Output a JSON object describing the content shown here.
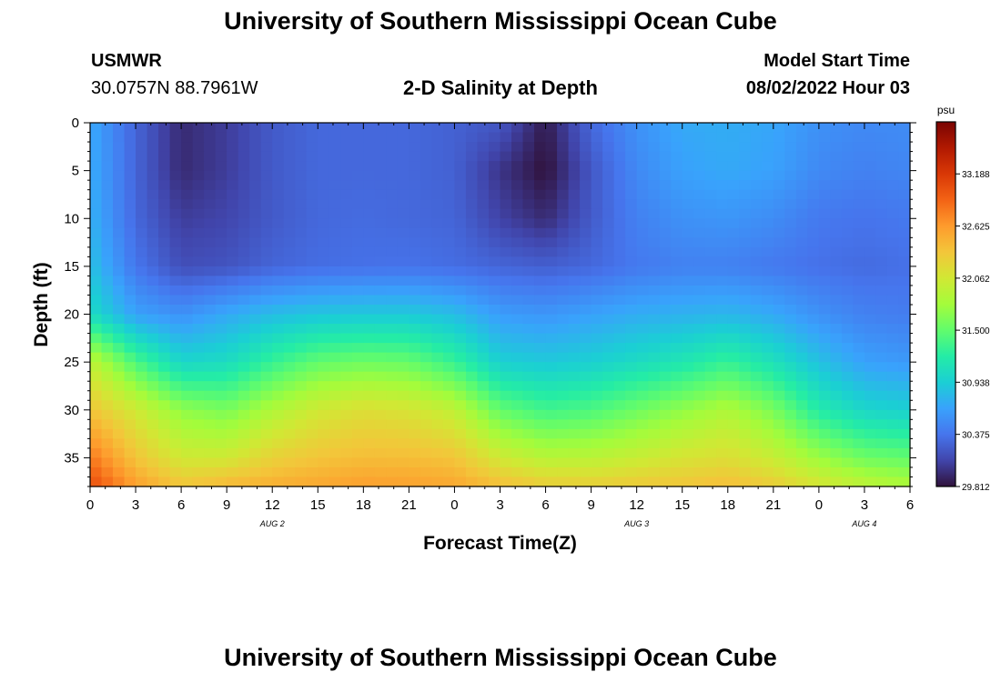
{
  "page": {
    "title": "University of Southern Mississippi Ocean Cube",
    "title_repeat": "University of Southern Mississippi Ocean Cube",
    "station": "USMWR",
    "coordinates": "30.0757N  88.7961W",
    "subtitle": "2-D Salinity at Depth",
    "model_start_label": "Model Start Time",
    "model_start_value": "08/02/2022 Hour 03"
  },
  "chart_data": {
    "type": "heatmap",
    "title": "2-D Salinity at Depth",
    "xlabel": "Forecast Time(Z)",
    "ylabel": "Depth (ft)",
    "x_tick_labels": [
      "0",
      "3",
      "6",
      "9",
      "12",
      "15",
      "18",
      "21",
      "0",
      "3",
      "6",
      "9",
      "12",
      "15",
      "18",
      "21",
      "0",
      "3",
      "6"
    ],
    "x_hours_range": [
      0,
      54
    ],
    "date_labels": [
      {
        "label": "AUG 2",
        "hour": 12
      },
      {
        "label": "AUG 3",
        "hour": 36
      },
      {
        "label": "AUG 4",
        "hour": 51
      }
    ],
    "y_ticks": [
      0,
      5,
      10,
      15,
      20,
      25,
      30,
      35
    ],
    "ylim": [
      0,
      38
    ],
    "y_inverted": true,
    "colorbar": {
      "unit": "psu",
      "min": 29.812,
      "max": 33.75,
      "tick_labels": [
        "29.812",
        "30.375",
        "30.938",
        "31.500",
        "32.062",
        "32.625",
        "33.188"
      ],
      "colors": [
        "#30123b",
        "#4145ab",
        "#4675ed",
        "#39a2fc",
        "#1bcfd4",
        "#24eca6",
        "#61fc6c",
        "#a4fc3b",
        "#d1e834",
        "#f3c63a",
        "#fe9b2d",
        "#f36315",
        "#d93806",
        "#b11901",
        "#7a0402"
      ]
    },
    "time_samples_hours": [
      0,
      3,
      6,
      9,
      12,
      15,
      18,
      21,
      24,
      27,
      30,
      33,
      36,
      39,
      42,
      45,
      48,
      51,
      54
    ],
    "depth_samples_ft": [
      0,
      5,
      10,
      15,
      20,
      25,
      30,
      35,
      38
    ],
    "values_psu": [
      [
        30.7,
        30.28,
        29.95,
        30.05,
        30.22,
        30.3,
        30.3,
        30.3,
        30.26,
        30.2,
        29.86,
        30.3,
        30.55,
        30.7,
        30.72,
        30.68,
        30.55,
        30.5,
        30.52
      ],
      [
        30.72,
        30.28,
        29.95,
        30.05,
        30.22,
        30.3,
        30.3,
        30.3,
        30.26,
        30.0,
        29.81,
        30.2,
        30.5,
        30.65,
        30.7,
        30.65,
        30.5,
        30.45,
        30.48
      ],
      [
        30.75,
        30.3,
        30.05,
        30.1,
        30.22,
        30.3,
        30.32,
        30.3,
        30.28,
        30.08,
        29.95,
        30.22,
        30.45,
        30.55,
        30.58,
        30.52,
        30.4,
        30.37,
        30.4
      ],
      [
        30.85,
        30.38,
        30.15,
        30.18,
        30.28,
        30.33,
        30.35,
        30.36,
        30.33,
        30.28,
        30.25,
        30.3,
        30.4,
        30.45,
        30.45,
        30.4,
        30.35,
        30.32,
        30.35
      ],
      [
        31.05,
        30.65,
        30.55,
        30.7,
        30.82,
        30.88,
        30.9,
        30.9,
        30.82,
        30.62,
        30.58,
        30.65,
        30.72,
        30.75,
        30.78,
        30.7,
        30.55,
        30.45,
        30.42
      ],
      [
        31.95,
        31.4,
        31.0,
        31.05,
        31.3,
        31.5,
        31.55,
        31.52,
        31.3,
        30.95,
        30.9,
        30.95,
        31.05,
        31.15,
        31.3,
        31.1,
        30.85,
        30.65,
        30.6
      ],
      [
        32.35,
        32.05,
        31.7,
        31.6,
        31.85,
        32.05,
        32.15,
        32.1,
        31.95,
        31.5,
        31.35,
        31.4,
        31.55,
        31.7,
        31.85,
        31.6,
        31.2,
        31.0,
        30.95
      ],
      [
        32.8,
        32.35,
        32.05,
        32.05,
        32.25,
        32.35,
        32.4,
        32.4,
        32.35,
        32.05,
        31.9,
        31.92,
        32.0,
        32.1,
        32.15,
        32.0,
        31.75,
        31.55,
        31.5
      ],
      [
        33.05,
        32.6,
        32.35,
        32.45,
        32.5,
        32.55,
        32.6,
        32.58,
        32.55,
        32.4,
        32.3,
        32.28,
        32.32,
        32.35,
        32.4,
        32.3,
        32.1,
        31.95,
        31.85
      ]
    ]
  }
}
